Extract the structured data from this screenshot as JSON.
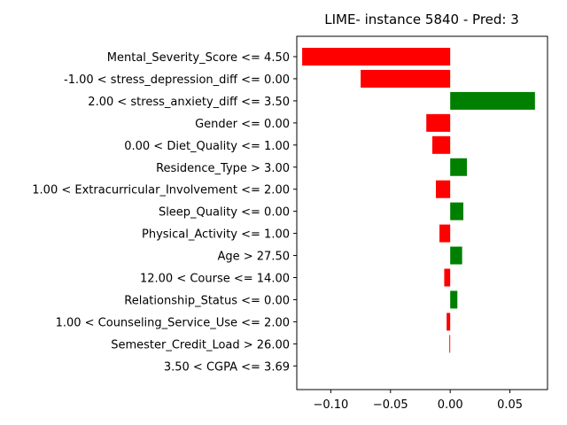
{
  "chart_data": {
    "type": "bar",
    "orientation": "horizontal",
    "title": "LIME- instance 5840 - Pred: 3",
    "xlabel": "",
    "ylabel": "",
    "xlim": [
      -0.1285,
      0.0815
    ],
    "xticks": [
      -0.1,
      -0.05,
      0.0,
      0.05
    ],
    "xtick_labels": [
      "−0.10",
      "−0.05",
      "0.00",
      "0.05"
    ],
    "grid": false,
    "colors": {
      "positive": "#008000",
      "negative": "#ff0000"
    },
    "categories": [
      "Mental_Severity_Score <= 4.50",
      "-1.00 < stress_depression_diff <= 0.00",
      "2.00 < stress_anxiety_diff <= 3.50",
      "Gender <= 0.00",
      "0.00 < Diet_Quality <= 1.00",
      "Residence_Type > 3.00",
      "1.00 < Extracurricular_Involvement <= 2.00",
      "Sleep_Quality <= 0.00",
      "Physical_Activity <= 1.00",
      "Age > 27.50",
      "12.00 < Course <= 14.00",
      "Relationship_Status <= 0.00",
      "1.00 < Counseling_Service_Use <= 2.00",
      "Semester_Credit_Load > 26.00",
      "3.50 < CGPA <= 3.69"
    ],
    "values": [
      -0.124,
      -0.075,
      0.071,
      -0.02,
      -0.015,
      0.014,
      -0.012,
      0.011,
      -0.009,
      0.01,
      -0.005,
      0.006,
      -0.003,
      -0.0007,
      0.0
    ]
  }
}
